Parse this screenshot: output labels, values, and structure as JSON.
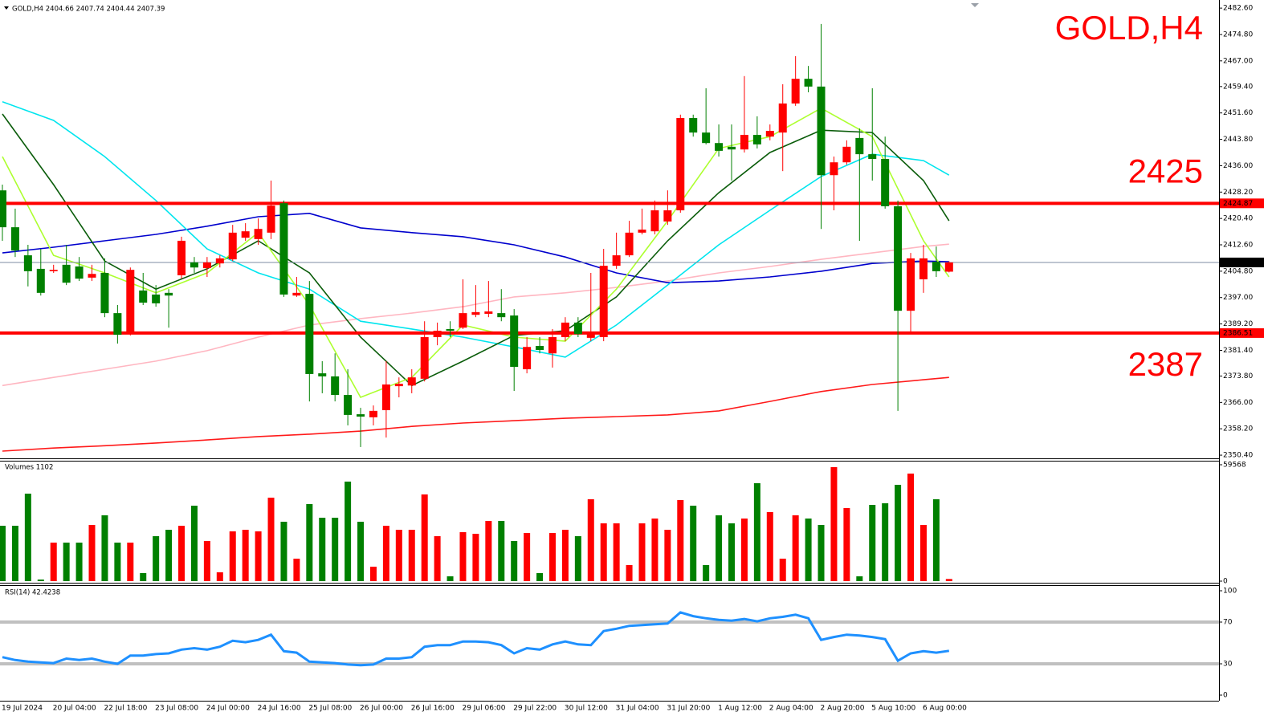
{
  "chart_data": [
    {
      "type": "candlestick",
      "title": "GOLD,H4",
      "info": "GOLD,H4  2404.66 2407.74 2404.44 2407.39",
      "categories": [
        "19 Jul 2024",
        null,
        null,
        null,
        "20 Jul 04:00",
        null,
        null,
        null,
        "22 Jul 18:00",
        null,
        null,
        null,
        "23 Jul 08:00",
        null,
        null,
        null,
        "24 Jul 00:00",
        null,
        null,
        null,
        "24 Jul 16:00",
        null,
        null,
        null,
        "25 Jul 08:00",
        null,
        null,
        null,
        "26 Jul 00:00",
        null,
        null,
        null,
        "26 Jul 16:00",
        null,
        null,
        null,
        "29 Jul 06:00",
        null,
        null,
        null,
        "29 Jul 22:00",
        null,
        null,
        null,
        "30 Jul 12:00",
        null,
        null,
        null,
        "31 Jul 04:00",
        null,
        null,
        null,
        "31 Jul 20:00",
        null,
        null,
        null,
        "1 Aug 12:00",
        null,
        null,
        null,
        "2 Aug 04:00",
        null,
        null,
        null,
        "2 Aug 20:00",
        null,
        null,
        null,
        "5 Aug 10:00",
        null,
        null,
        null,
        "6 Aug 00:00",
        null,
        null
      ],
      "open": [
        2428.7,
        2417.8,
        2409.5,
        2405.5,
        2404.8,
        2406.7,
        2406.2,
        2402.9,
        2404.3,
        2392.4,
        2386.5,
        2399.1,
        2397.9,
        2398.4,
        2403.6,
        2407.4,
        2405.7,
        2407.1,
        2408.3,
        2414.7,
        2414.3,
        2416.2,
        2424.9,
        2397.6,
        2398.1,
        2374.6,
        2373.7,
        2368.2,
        2362.5,
        2361.6,
        2363.7,
        2370.8,
        2371.0,
        2373.0,
        2385.3,
        2387.7,
        2388.1,
        2391.9,
        2392.2,
        2392.4,
        2391.7,
        2375.8,
        2382.7,
        2380.5,
        2385.3,
        2389.6,
        2385.1,
        2385.3,
        2406.4,
        2409.5,
        2416.2,
        2416.6,
        2419.5,
        2422.8,
        2450.1,
        2445.8,
        2442.7,
        2441.6,
        2440.8,
        2445.1,
        2444.6,
        2445.8,
        2454.4,
        2461.7,
        2459.4,
        2433.2,
        2437.0,
        2444.2,
        2439.4,
        2438.0,
        2424.0,
        2393.1,
        2402.4,
        2407.6,
        2404.66
      ],
      "high": [
        2430.4,
        2423.3,
        2412.6,
        2411.4,
        2406.7,
        2412.6,
        2409.0,
        2406.7,
        2408.6,
        2394.8,
        2405.9,
        2404.3,
        2400.7,
        2399.5,
        2415.0,
        2409.0,
        2409.0,
        2409.5,
        2418.5,
        2419.0,
        2420.4,
        2431.6,
        2425.7,
        2403.1,
        2401.9,
        2378.2,
        2380.5,
        2375.8,
        2364.4,
        2365.1,
        2378.2,
        2373.4,
        2375.8,
        2390.0,
        2389.6,
        2390.0,
        2402.4,
        2400.7,
        2401.9,
        2399.5,
        2393.6,
        2385.3,
        2385.3,
        2387.7,
        2391.2,
        2391.2,
        2404.3,
        2411.4,
        2416.2,
        2419.7,
        2423.3,
        2425.7,
        2428.7,
        2451.1,
        2451.1,
        2458.9,
        2448.2,
        2448.2,
        2462.5,
        2450.6,
        2448.2,
        2460.1,
        2468.4,
        2465.5,
        2477.9,
        2438.7,
        2443.5,
        2447.0,
        2458.9,
        2444.6,
        2425.7,
        2410.2,
        2412.6,
        2412.1,
        2407.74
      ],
      "low": [
        2413.8,
        2409.0,
        2400.3,
        2397.6,
        2404.3,
        2400.7,
        2401.9,
        2401.9,
        2391.2,
        2383.4,
        2385.8,
        2394.8,
        2394.3,
        2388.1,
        2402.6,
        2404.3,
        2403.1,
        2405.9,
        2407.8,
        2413.8,
        2412.6,
        2414.3,
        2397.2,
        2397.2,
        2366.3,
        2368.7,
        2366.3,
        2359.2,
        2352.8,
        2359.2,
        2355.6,
        2367.5,
        2368.7,
        2372.2,
        2382.9,
        2385.3,
        2387.7,
        2391.2,
        2391.2,
        2390.0,
        2369.4,
        2374.6,
        2380.5,
        2376.3,
        2384.1,
        2385.3,
        2384.1,
        2384.1,
        2405.5,
        2409.0,
        2415.7,
        2415.7,
        2418.5,
        2422.1,
        2444.6,
        2442.3,
        2438.7,
        2431.6,
        2439.9,
        2441.1,
        2443.5,
        2434.4,
        2453.7,
        2457.7,
        2417.3,
        2422.8,
        2436.3,
        2413.8,
        2431.6,
        2423.3,
        2363.5,
        2386.5,
        2398.4,
        2403.1,
        2404.44
      ],
      "close": [
        2417.8,
        2410.9,
        2404.8,
        2398.4,
        2405.2,
        2401.4,
        2402.6,
        2404.0,
        2392.4,
        2386.0,
        2405.2,
        2395.5,
        2395.3,
        2397.6,
        2413.8,
        2405.9,
        2407.4,
        2408.6,
        2416.2,
        2416.6,
        2417.3,
        2424.2,
        2397.9,
        2398.4,
        2374.4,
        2373.7,
        2368.2,
        2362.3,
        2361.8,
        2363.5,
        2371.3,
        2371.5,
        2373.4,
        2385.3,
        2387.2,
        2387.2,
        2392.4,
        2392.7,
        2392.9,
        2391.2,
        2376.5,
        2382.4,
        2381.5,
        2385.3,
        2389.6,
        2386.2,
        2386.5,
        2406.4,
        2409.5,
        2416.2,
        2417.1,
        2422.8,
        2422.8,
        2450.1,
        2445.8,
        2442.7,
        2440.4,
        2440.8,
        2445.1,
        2442.3,
        2446.3,
        2454.4,
        2461.7,
        2459.4,
        2433.2,
        2437.0,
        2441.6,
        2439.4,
        2438.0,
        2424.0,
        2393.1,
        2408.6,
        2408.6,
        2404.8,
        2407.39
      ],
      "up_color": "#ff0000",
      "down_color": "#008000",
      "ylim": [
        2349.7,
        2485.0
      ],
      "yticks": [
        {
          "value": 2350.4,
          "label": "2350.40"
        },
        {
          "value": 2358.2,
          "label": "2358.20"
        },
        {
          "value": 2366,
          "label": "2366.00"
        },
        {
          "value": 2373.8,
          "label": "2373.80"
        },
        {
          "value": 2381.4,
          "label": "2381.40"
        },
        {
          "value": 2389.2,
          "label": "2389.20"
        },
        {
          "value": 2397,
          "label": "2397.00"
        },
        {
          "value": 2404.8,
          "label": "2404.80"
        },
        {
          "value": 2412.6,
          "label": "2412.60"
        },
        {
          "value": 2420.4,
          "label": "2420.40"
        },
        {
          "value": 2428.2,
          "label": "2428.20"
        },
        {
          "value": 2436,
          "label": "2436.00"
        },
        {
          "value": 2443.8,
          "label": "2443.80"
        },
        {
          "value": 2451.6,
          "label": "2451.60"
        },
        {
          "value": 2459.4,
          "label": "2459.40"
        },
        {
          "value": 2467,
          "label": "2467.00"
        },
        {
          "value": 2474.8,
          "label": "2474.80"
        },
        {
          "value": 2482.6,
          "label": "2482.60"
        }
      ],
      "levels": [
        {
          "value": 2424.87,
          "label": "2424.87",
          "color": "#ff0000"
        },
        {
          "value": 2407.39,
          "label": "2407.39",
          "color": "#7d8ba3"
        },
        {
          "value": 2386.51,
          "label": "2386.51",
          "color": "#ff0000"
        }
      ],
      "annotations": [
        "2425",
        "2387"
      ],
      "moving_averages": {
        "x": [
          0,
          4,
          8,
          12,
          16,
          20,
          24,
          28,
          32,
          36,
          40,
          44,
          48,
          52,
          56,
          60,
          64,
          68,
          72,
          74
        ],
        "series": [
          {
            "color": "#ff1a1a",
            "values": [
              2351.6,
              2352.5,
              2353.2,
              2354.0,
              2354.9,
              2355.9,
              2356.6,
              2357.5,
              2358.9,
              2359.9,
              2360.6,
              2361.3,
              2361.8,
              2362.3,
              2363.5,
              2366.3,
              2369.2,
              2371.3,
              2372.7,
              2373.4
            ]
          },
          {
            "color": "#ffb6c1",
            "values": [
              2371.0,
              2373.4,
              2375.8,
              2378.2,
              2381.3,
              2385.3,
              2388.9,
              2390.8,
              2392.4,
              2394.3,
              2397.2,
              2398.4,
              2400.0,
              2401.9,
              2404.3,
              2406.2,
              2408.3,
              2410.2,
              2412.1,
              2412.8
            ]
          },
          {
            "color": "#0000cd",
            "values": [
              2410.2,
              2411.9,
              2413.8,
              2415.7,
              2418.1,
              2420.9,
              2421.9,
              2417.6,
              2416.2,
              2415.0,
              2412.6,
              2409.0,
              2404.3,
              2401.4,
              2401.9,
              2403.1,
              2404.8,
              2407.1,
              2407.8,
              2407.6
            ]
          },
          {
            "color": "#00e5ee",
            "values": [
              2454.9,
              2449.4,
              2438.7,
              2425.7,
              2411.4,
              2404.3,
              2399.5,
              2390.0,
              2387.7,
              2385.3,
              2382.4,
              2379.4,
              2388.9,
              2400.7,
              2412.6,
              2422.8,
              2432.8,
              2439.4,
              2437.5,
              2433.2
            ]
          },
          {
            "color": "#0a5c0a",
            "values": [
              2451.3,
              2430.4,
              2407.8,
              2399.5,
              2405.5,
              2413.8,
              2404.3,
              2385.3,
              2371.0,
              2378.2,
              2385.8,
              2387.2,
              2397.2,
              2413.8,
              2428.0,
              2439.9,
              2446.5,
              2445.8,
              2431.6,
              2419.7
            ]
          },
          {
            "color": "#adff2f",
            "values": [
              2438.7,
              2409.5,
              2404.3,
              2398.4,
              2404.3,
              2416.2,
              2394.8,
              2367.5,
              2373.4,
              2388.9,
              2385.3,
              2384.1,
              2399.5,
              2419.7,
              2441.1,
              2444.6,
              2453.0,
              2444.6,
              2413.8,
              2403.1
            ]
          }
        ]
      }
    },
    {
      "type": "bar",
      "label": "Volumes 1102",
      "values": [
        28345,
        28345,
        44777,
        822,
        19718,
        19718,
        19718,
        28756,
        33686,
        19718,
        19718,
        4108,
        23005,
        26291,
        28345,
        38615,
        20540,
        4519,
        25470,
        26291,
        25470,
        42723,
        30399,
        11502,
        39437,
        32453,
        32453,
        50939,
        30399,
        7394,
        28345,
        26291,
        26291,
        44366,
        23005,
        2465,
        25059,
        24237,
        30810,
        30810,
        20540,
        24648,
        4108,
        24648,
        26291,
        23005,
        41902,
        29578,
        29578,
        8216,
        29578,
        32042,
        26291,
        41491,
        38615,
        8216,
        33686,
        29578,
        32042,
        50118,
        35329,
        11502,
        33686,
        32042,
        28756,
        58334,
        37383,
        2465,
        39026,
        39848,
        49296,
        55047,
        28756,
        41902,
        1102
      ],
      "ylim": [
        0,
        59568
      ],
      "yticks": [
        0,
        59568
      ]
    },
    {
      "type": "line",
      "label": "RSI(14) 42.4238",
      "color": "#1e90ff",
      "values": [
        36.4,
        33.6,
        32.1,
        31.4,
        30.7,
        35.0,
        33.6,
        35.0,
        32.1,
        30.0,
        37.9,
        37.9,
        39.3,
        40.0,
        43.6,
        45.0,
        43.6,
        46.4,
        52.1,
        50.7,
        52.9,
        57.9,
        42.1,
        40.7,
        32.1,
        31.4,
        30.7,
        29.3,
        28.6,
        29.3,
        35.0,
        35.0,
        36.4,
        46.4,
        47.9,
        47.9,
        51.4,
        51.4,
        50.7,
        47.9,
        40.0,
        45.0,
        43.6,
        48.6,
        51.4,
        48.6,
        47.9,
        61.4,
        63.6,
        66.4,
        67.1,
        67.9,
        68.6,
        79.3,
        75.7,
        73.6,
        72.1,
        71.4,
        72.9,
        70.7,
        73.6,
        75.0,
        77.1,
        73.6,
        52.9,
        55.7,
        57.9,
        57.1,
        55.7,
        53.6,
        32.9,
        40.0,
        42.1,
        40.7,
        42.4238
      ],
      "ylim": [
        0,
        100
      ],
      "yticks": [
        0,
        30,
        70,
        100
      ],
      "levels": [
        30,
        70
      ],
      "level_color": "#c0c0c0"
    }
  ]
}
